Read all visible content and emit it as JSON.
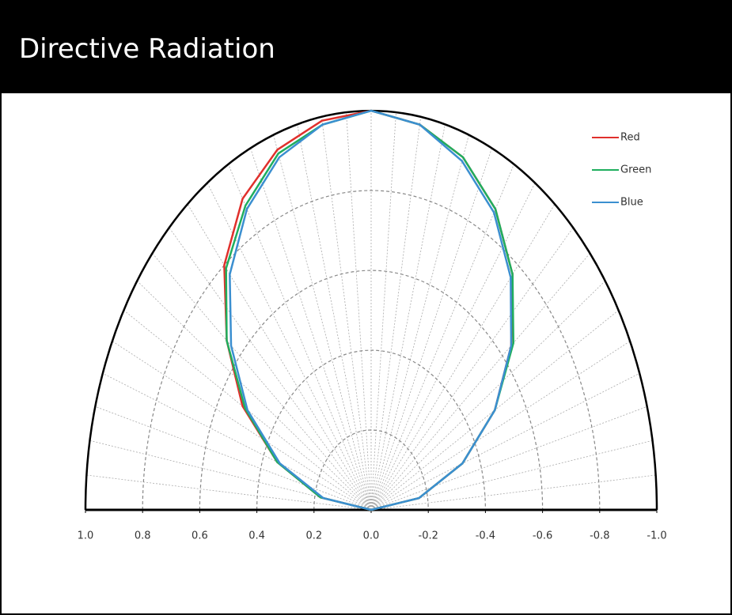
{
  "header": {
    "title": "Directive Radiation"
  },
  "chart_data": {
    "type": "polar",
    "x": [
      -90,
      -80,
      -70,
      -60,
      -50,
      -40,
      -30,
      -20,
      -10,
      0,
      10,
      20,
      30,
      40,
      50,
      60,
      70,
      80,
      90
    ],
    "series": [
      {
        "name": "Red",
        "color": "#e0302c",
        "values": [
          0,
          0.17,
          0.34,
          0.5,
          0.64,
          0.77,
          0.87,
          0.94,
          0.98,
          1.0,
          0.99,
          0.96,
          0.9,
          0.8,
          0.66,
          0.52,
          0.35,
          0.18,
          0
        ]
      },
      {
        "name": "Green",
        "color": "#1fae5e",
        "values": [
          0,
          0.17,
          0.34,
          0.5,
          0.65,
          0.77,
          0.87,
          0.94,
          0.98,
          1.0,
          0.98,
          0.95,
          0.88,
          0.79,
          0.66,
          0.51,
          0.35,
          0.18,
          0
        ]
      },
      {
        "name": "Blue",
        "color": "#3b8fd0",
        "values": [
          0,
          0.17,
          0.34,
          0.5,
          0.64,
          0.76,
          0.86,
          0.93,
          0.98,
          1.0,
          0.98,
          0.94,
          0.87,
          0.77,
          0.64,
          0.5,
          0.34,
          0.17,
          0
        ]
      }
    ],
    "xlim": [
      1.0,
      -1.0
    ],
    "xticks": [
      {
        "value": 1,
        "label": "1.0"
      },
      0.8,
      0.6,
      0.4,
      0.2,
      {
        "value": 0,
        "label": "0.0"
      },
      -0.2,
      -0.4,
      -0.6,
      -0.8,
      {
        "value": -1,
        "label": "-1.0"
      }
    ],
    "rlim": [
      0,
      1
    ],
    "rticks": [
      0.2,
      0.4,
      0.6,
      0.8
    ],
    "thetaticks": [
      -85,
      -80,
      -75,
      -70,
      -65,
      -60,
      -55,
      -50,
      -45,
      -40,
      -35,
      -30,
      -25,
      -20,
      -15,
      -10,
      -5,
      0,
      5,
      10,
      15,
      20,
      25,
      30,
      35,
      40,
      45,
      50,
      55,
      60,
      65,
      70,
      75,
      80,
      85
    ],
    "grid": true,
    "legend": "upper right"
  }
}
